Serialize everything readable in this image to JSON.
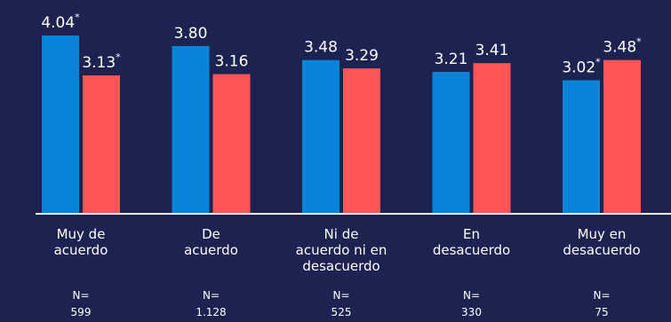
{
  "chart_data": {
    "type": "bar",
    "title": "",
    "xlabel": "",
    "ylabel": "",
    "ylim": [
      0,
      4.5
    ],
    "grid": false,
    "legend": "none",
    "categories": [
      [
        "Muy de",
        "acuerdo"
      ],
      [
        "De",
        "acuerdo"
      ],
      [
        "Ni de",
        "acuerdo ni en",
        "desacuerdo"
      ],
      [
        "En",
        "desacuerdo"
      ],
      [
        "Muy en",
        "desacuerdo"
      ]
    ],
    "n_prefix": "N=",
    "n_values": [
      "599",
      "1.128",
      "525",
      "330",
      "75"
    ],
    "series": [
      {
        "color": "#0a84d8",
        "values": [
          4.04,
          3.8,
          3.48,
          3.21,
          3.02
        ],
        "labels": [
          "4.04",
          "3.80",
          "3.48",
          "3.21",
          "3.02"
        ],
        "significant": [
          true,
          false,
          false,
          false,
          true
        ]
      },
      {
        "color": "#ff5458",
        "values": [
          3.13,
          3.16,
          3.29,
          3.41,
          3.48
        ],
        "labels": [
          "3.13",
          "3.16",
          "3.29",
          "3.41",
          "3.48"
        ],
        "significant": [
          true,
          false,
          false,
          false,
          true
        ]
      }
    ],
    "significance_marker": "*"
  }
}
